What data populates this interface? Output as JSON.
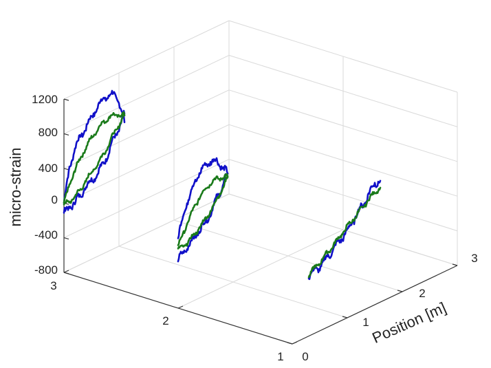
{
  "chart_data": {
    "type": "line",
    "title": "",
    "zlabel": "micro-strain",
    "xlabel": "Position [m]",
    "zlim": [
      -800,
      1200
    ],
    "zticks": [
      "-800",
      "-400",
      "0",
      "400",
      "800",
      "1200"
    ],
    "xticks": [
      "0",
      "1",
      "2",
      "3"
    ],
    "yticks": [
      "1",
      "2",
      "3"
    ],
    "grid": true,
    "colors": {
      "blue": "#1010c8",
      "green": "#1a7a1a"
    },
    "loops": [
      {
        "depth": 3,
        "blue": {
          "upper": [
            [
              0,
              0
            ],
            [
              0.1,
              380
            ],
            [
              0.2,
              570
            ],
            [
              0.3,
              680
            ],
            [
              0.4,
              750
            ],
            [
              0.5,
              840
            ],
            [
              0.6,
              920
            ],
            [
              0.7,
              980
            ],
            [
              0.8,
              1000
            ],
            [
              0.9,
              980
            ],
            [
              1.0,
              880
            ],
            [
              1.1,
              600
            ]
          ],
          "lower": [
            [
              0,
              -100
            ],
            [
              0.1,
              -90
            ],
            [
              0.2,
              -40
            ],
            [
              0.3,
              -10
            ],
            [
              0.4,
              80
            ],
            [
              0.5,
              100
            ],
            [
              0.6,
              160
            ],
            [
              0.7,
              220
            ],
            [
              0.8,
              330
            ],
            [
              0.9,
              460
            ],
            [
              1.0,
              560
            ],
            [
              1.1,
              700
            ]
          ]
        },
        "green": {
          "upper": [
            [
              0,
              0
            ],
            [
              0.1,
              180
            ],
            [
              0.2,
              320
            ],
            [
              0.3,
              430
            ],
            [
              0.4,
              520
            ],
            [
              0.5,
              600
            ],
            [
              0.6,
              660
            ],
            [
              0.7,
              710
            ],
            [
              0.8,
              740
            ],
            [
              0.9,
              740
            ],
            [
              1.0,
              720
            ],
            [
              1.1,
              680
            ]
          ],
          "lower": [
            [
              0,
              -10
            ],
            [
              0.1,
              -20
            ],
            [
              0.2,
              20
            ],
            [
              0.3,
              60
            ],
            [
              0.4,
              140
            ],
            [
              0.5,
              200
            ],
            [
              0.6,
              260
            ],
            [
              0.7,
              330
            ],
            [
              0.8,
              420
            ],
            [
              0.9,
              520
            ],
            [
              1.0,
              600
            ],
            [
              1.1,
              680
            ]
          ]
        }
      },
      {
        "depth": 2,
        "blue": {
          "upper": [
            [
              0,
              0
            ],
            [
              0.1,
              270
            ],
            [
              0.2,
              420
            ],
            [
              0.3,
              560
            ],
            [
              0.4,
              650
            ],
            [
              0.5,
              700
            ],
            [
              0.6,
              720
            ],
            [
              0.7,
              680
            ],
            [
              0.8,
              600
            ],
            [
              0.9,
              480
            ]
          ],
          "lower": [
            [
              0,
              -250
            ],
            [
              0.1,
              -180
            ],
            [
              0.2,
              -130
            ],
            [
              0.3,
              -70
            ],
            [
              0.4,
              -10
            ],
            [
              0.5,
              40
            ],
            [
              0.6,
              130
            ],
            [
              0.7,
              250
            ],
            [
              0.8,
              360
            ],
            [
              0.9,
              480
            ]
          ]
        },
        "green": {
          "upper": [
            [
              0,
              -80
            ],
            [
              0.1,
              40
            ],
            [
              0.2,
              170
            ],
            [
              0.3,
              280
            ],
            [
              0.4,
              370
            ],
            [
              0.5,
              430
            ],
            [
              0.6,
              470
            ],
            [
              0.7,
              480
            ],
            [
              0.8,
              470
            ],
            [
              0.9,
              450
            ]
          ],
          "lower": [
            [
              0,
              -120
            ],
            [
              0.1,
              -120
            ],
            [
              0.2,
              -80
            ],
            [
              0.3,
              -40
            ],
            [
              0.4,
              20
            ],
            [
              0.5,
              80
            ],
            [
              0.6,
              150
            ],
            [
              0.7,
              240
            ],
            [
              0.8,
              330
            ],
            [
              0.9,
              440
            ]
          ]
        }
      },
      {
        "depth": 1,
        "blue": {
          "upper": [
            [
              0.3,
              -100
            ],
            [
              0.4,
              -80
            ],
            [
              0.5,
              -60
            ],
            [
              0.6,
              -10
            ],
            [
              0.7,
              40
            ],
            [
              0.8,
              100
            ],
            [
              0.9,
              150
            ],
            [
              1.0,
              200
            ],
            [
              1.1,
              280
            ],
            [
              1.2,
              360
            ],
            [
              1.3,
              430
            ],
            [
              1.4,
              520
            ],
            [
              1.5,
              600
            ],
            [
              1.6,
              600
            ]
          ]
        },
        "green": {
          "upper": [
            [
              0.3,
              -100
            ],
            [
              0.4,
              -50
            ],
            [
              0.5,
              -10
            ],
            [
              0.6,
              40
            ],
            [
              0.7,
              90
            ],
            [
              0.8,
              140
            ],
            [
              0.9,
              200
            ],
            [
              1.0,
              250
            ],
            [
              1.1,
              300
            ],
            [
              1.2,
              350
            ],
            [
              1.3,
              400
            ],
            [
              1.4,
              450
            ],
            [
              1.5,
              500
            ],
            [
              1.6,
              520
            ]
          ]
        }
      }
    ]
  }
}
